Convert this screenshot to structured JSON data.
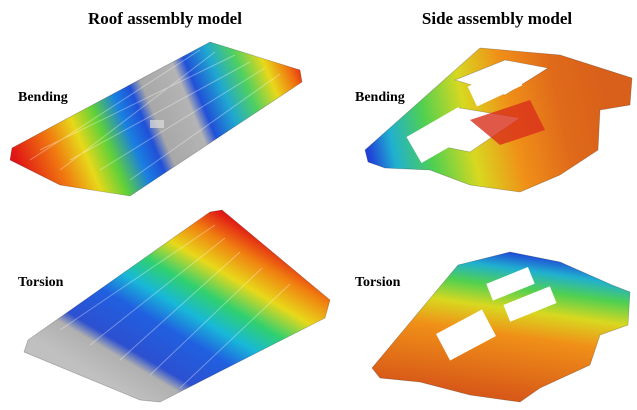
{
  "columns": [
    {
      "title": "Roof assembly model",
      "panels": [
        {
          "label": "Bending"
        },
        {
          "label": "Torsion"
        }
      ]
    },
    {
      "title": "Side assembly model",
      "panels": [
        {
          "label": "Bending"
        },
        {
          "label": "Torsion"
        }
      ]
    }
  ]
}
